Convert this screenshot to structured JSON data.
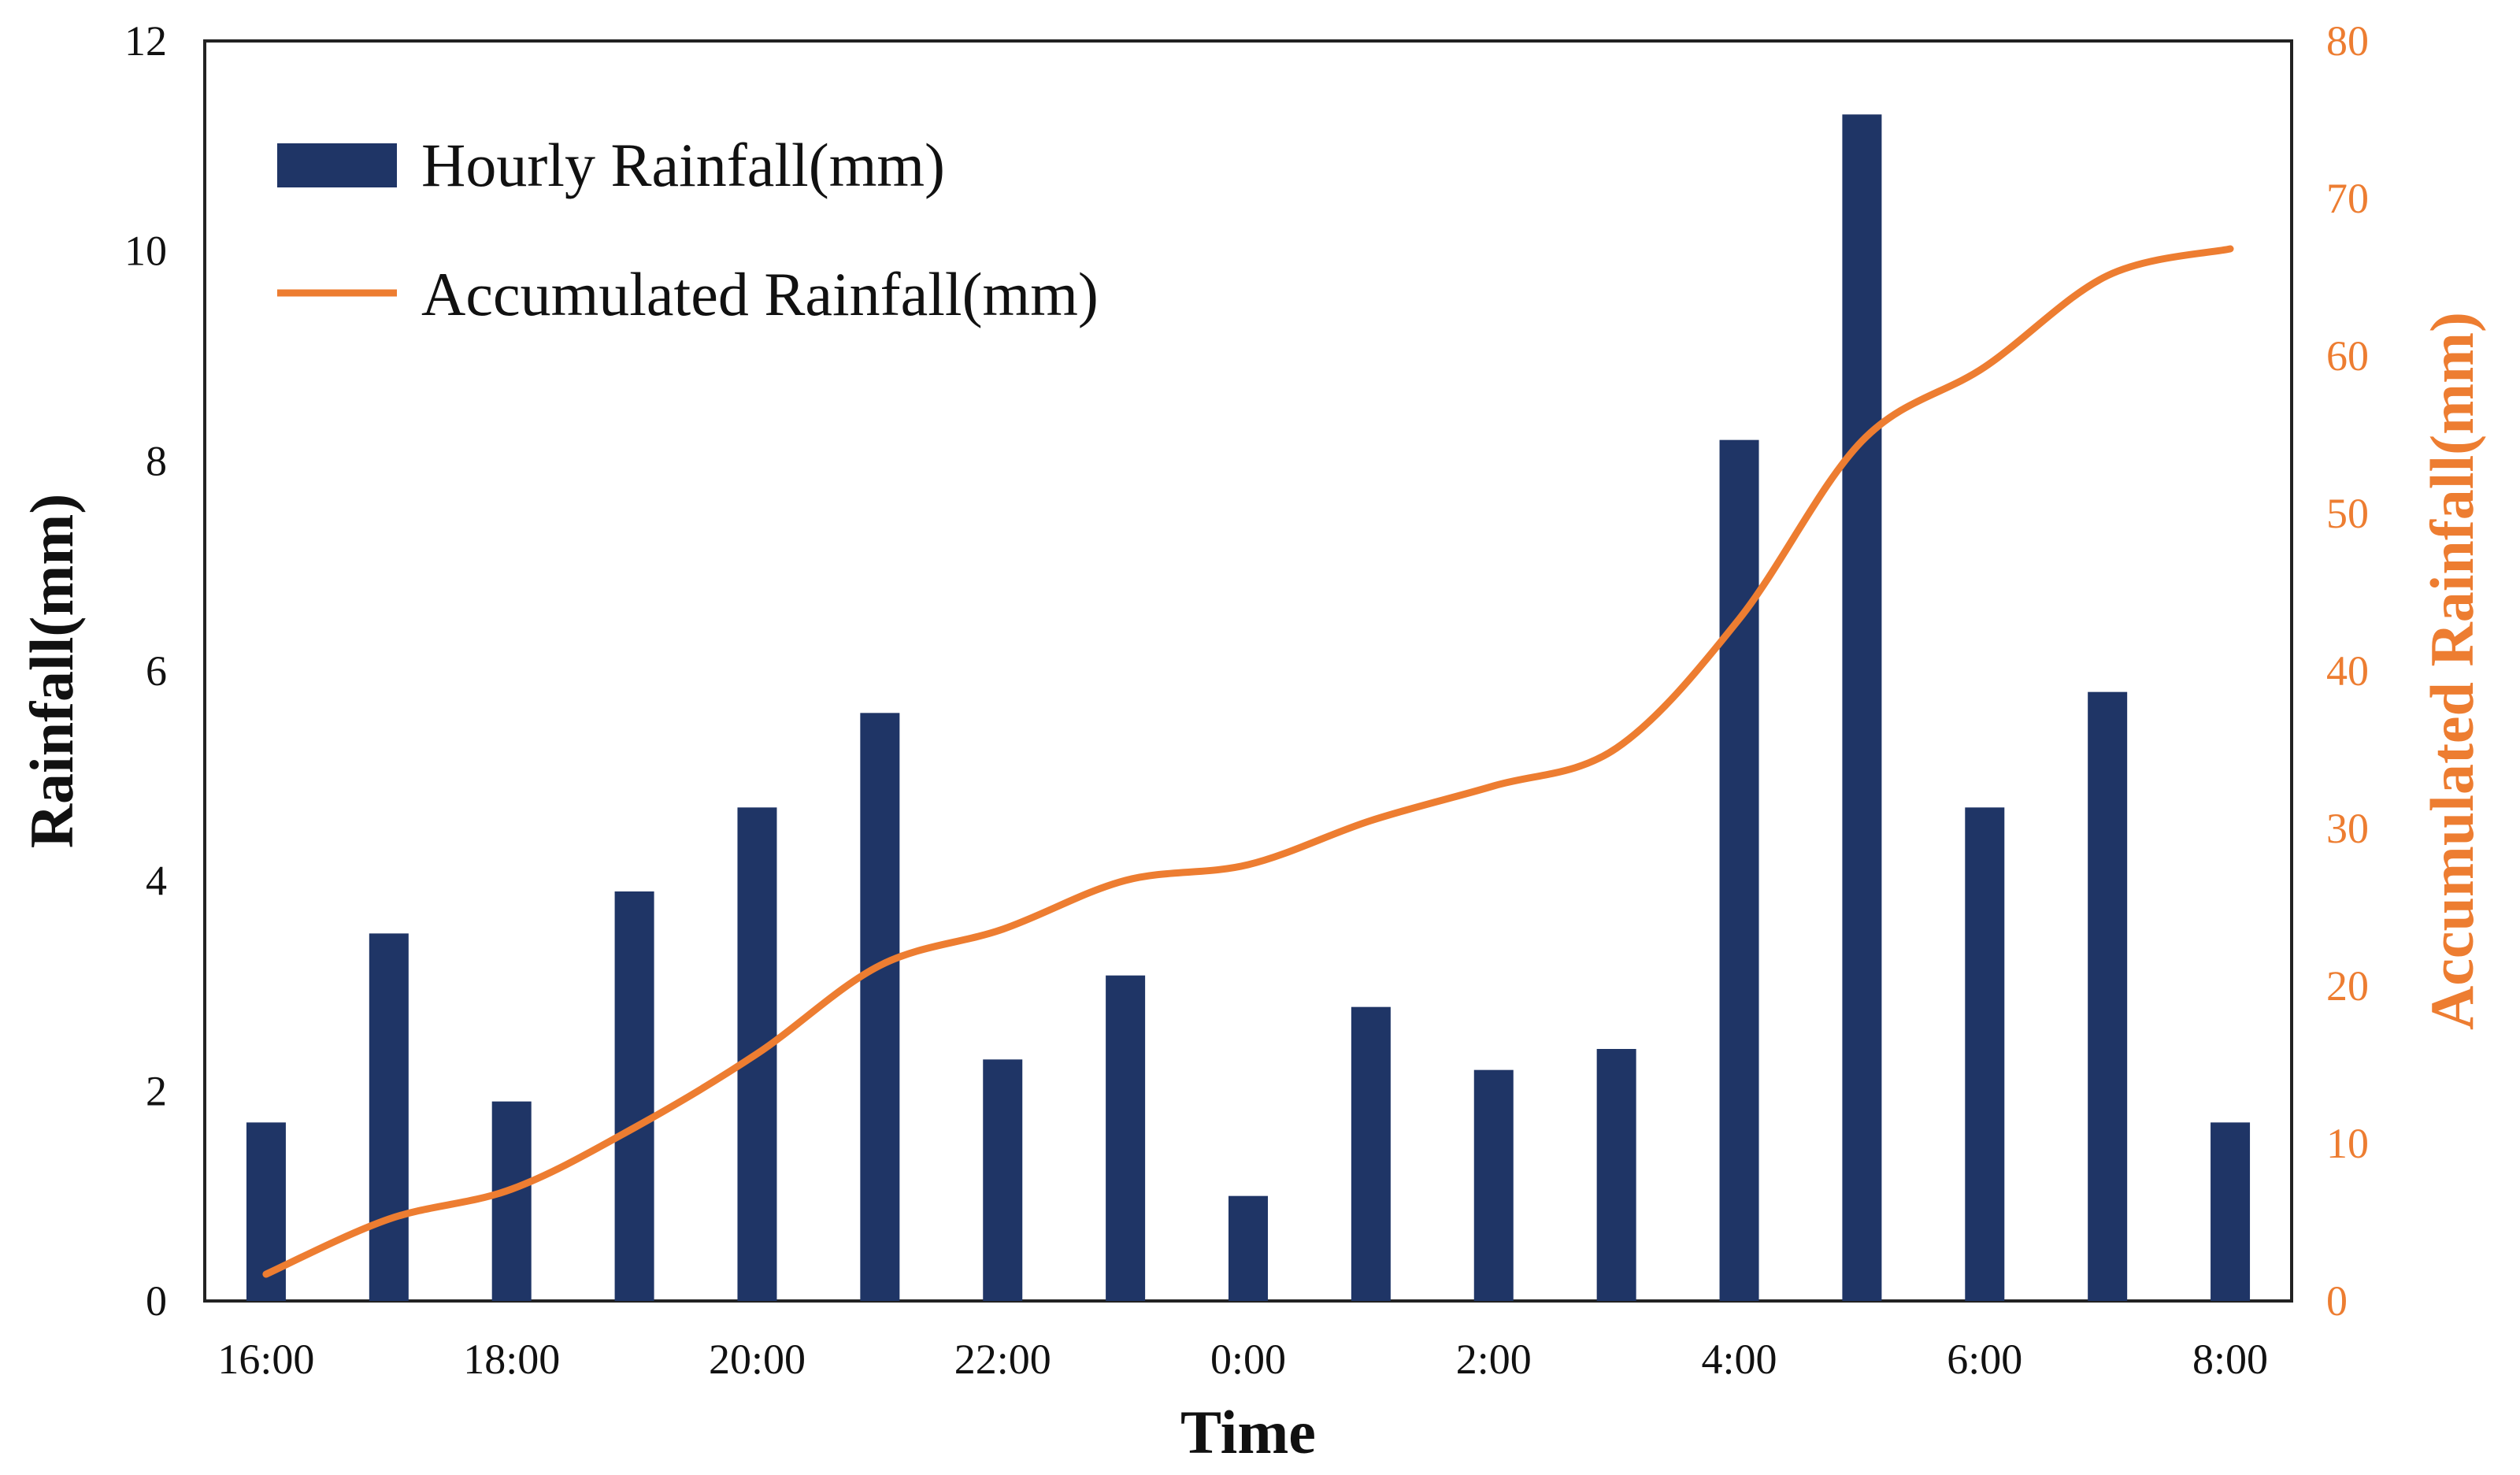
{
  "chart_data": {
    "type": "bar",
    "categories": [
      "16:00",
      "17:00",
      "18:00",
      "19:00",
      "20:00",
      "21:00",
      "22:00",
      "23:00",
      "0:00",
      "1:00",
      "2:00",
      "3:00",
      "4:00",
      "5:00",
      "6:00",
      "7:00",
      "8:00"
    ],
    "tick_labels": [
      "16:00",
      "18:00",
      "20:00",
      "22:00",
      "0:00",
      "2:00",
      "4:00",
      "6:00",
      "8:00"
    ],
    "series": [
      {
        "name": "Hourly Rainfall(mm)",
        "type": "bar",
        "axis": "left",
        "color": "#1F3566",
        "values": [
          1.7,
          3.5,
          1.9,
          3.9,
          4.7,
          5.6,
          2.3,
          3.1,
          1.0,
          2.8,
          2.2,
          2.4,
          8.2,
          11.3,
          4.7,
          5.8,
          1.7
        ]
      },
      {
        "name": "Accumulated Rainfall(mm)",
        "type": "line",
        "axis": "right",
        "color": "#ED7D31",
        "values": [
          1.7,
          5.2,
          7.1,
          11.0,
          15.7,
          21.3,
          23.6,
          26.7,
          27.7,
          30.5,
          32.7,
          35.1,
          43.3,
          54.6,
          59.3,
          65.1,
          66.8
        ]
      }
    ],
    "xlabel": "Time",
    "ylabel": "Rainfall(mm)",
    "y2label": "Accumulated Rainfall(mm)",
    "ylim": [
      0,
      12
    ],
    "y2lim": [
      0,
      80
    ],
    "yticks": [
      "0",
      "2",
      "4",
      "6",
      "8",
      "10",
      "12"
    ],
    "y2ticks": [
      "0",
      "10",
      "20",
      "30",
      "40",
      "50",
      "60",
      "70",
      "80"
    ],
    "legend": "top-left",
    "grid": false
  }
}
